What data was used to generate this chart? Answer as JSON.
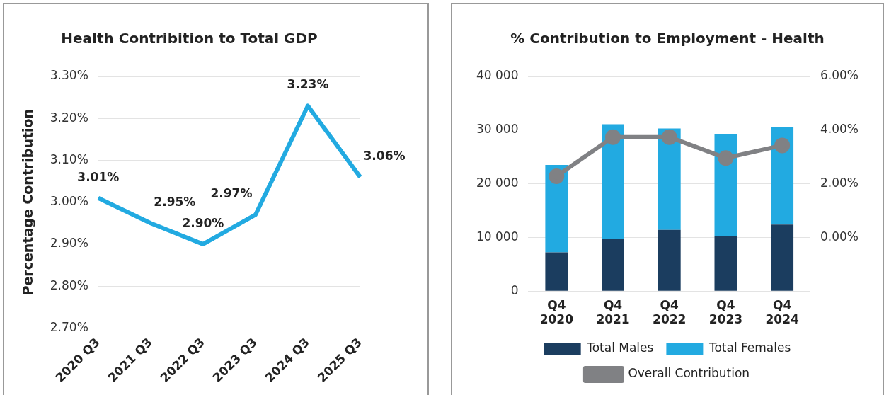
{
  "chart_data": [
    {
      "type": "line",
      "title": "Health Contribition to Total GDP",
      "ylabel": "Percentage Contribution",
      "categories": [
        "2020 Q3",
        "2021 Q3",
        "2022 Q3",
        "2023 Q3",
        "2024 Q3",
        "2025 Q3"
      ],
      "values": [
        3.01,
        2.95,
        2.9,
        2.97,
        3.23,
        3.06
      ],
      "color": "#22aae1",
      "value_labels": [
        "3.01%",
        "2.95%",
        "2.90%",
        "2.97%",
        "3.23%",
        "3.06%"
      ],
      "ylim": [
        2.7,
        3.3
      ],
      "yticks": [
        {
          "value": 2.7,
          "label": "2.70%"
        },
        {
          "value": 2.8,
          "label": "2.80%"
        },
        {
          "value": 2.9,
          "label": "2.90%"
        },
        {
          "value": 3.0,
          "label": "3.00%"
        },
        {
          "value": 3.1,
          "label": "3.10%"
        },
        {
          "value": 3.2,
          "label": "3.20%"
        },
        {
          "value": 3.3,
          "label": "3.30%"
        }
      ],
      "grid": "y",
      "marker": "none",
      "line_style": "solid"
    },
    {
      "type": "bar",
      "title": "% Contribution to Employment - Health",
      "stacked": true,
      "categories": [
        "Q4 2020",
        "Q4 2021",
        "Q4 2022",
        "Q4 2023",
        "Q4 2024"
      ],
      "series": [
        {
          "name": "Total Males",
          "color": "#1b3d5f",
          "values": [
            7200,
            9700,
            11400,
            10300,
            12400
          ]
        },
        {
          "name": "Total Females",
          "color": "#22aae1",
          "values": [
            16300,
            21400,
            18900,
            19000,
            18100
          ]
        },
        {
          "name": "Overall Contribution",
          "type": "line",
          "axis": "y2",
          "color": "#808184",
          "values": [
            2.28,
            3.74,
            3.74,
            2.96,
            3.43
          ]
        }
      ],
      "ylim": [
        0,
        40000
      ],
      "yticks": [
        0,
        {
          "value": 10000,
          "label": "10 000"
        },
        {
          "value": 20000,
          "label": "20 000"
        },
        {
          "value": 30000,
          "label": "30 000"
        },
        {
          "value": 40000,
          "label": "40 000"
        }
      ],
      "y2lim": [
        -2,
        6
      ],
      "y2ticks": [
        {
          "value": 0,
          "label": "0.00%"
        },
        {
          "value": 2,
          "label": "2.00%"
        },
        {
          "value": 4,
          "label": "4.00%"
        },
        {
          "value": 6,
          "label": "6.00%"
        }
      ],
      "grid": "y",
      "legend": "bottom",
      "marker": "circle"
    }
  ]
}
